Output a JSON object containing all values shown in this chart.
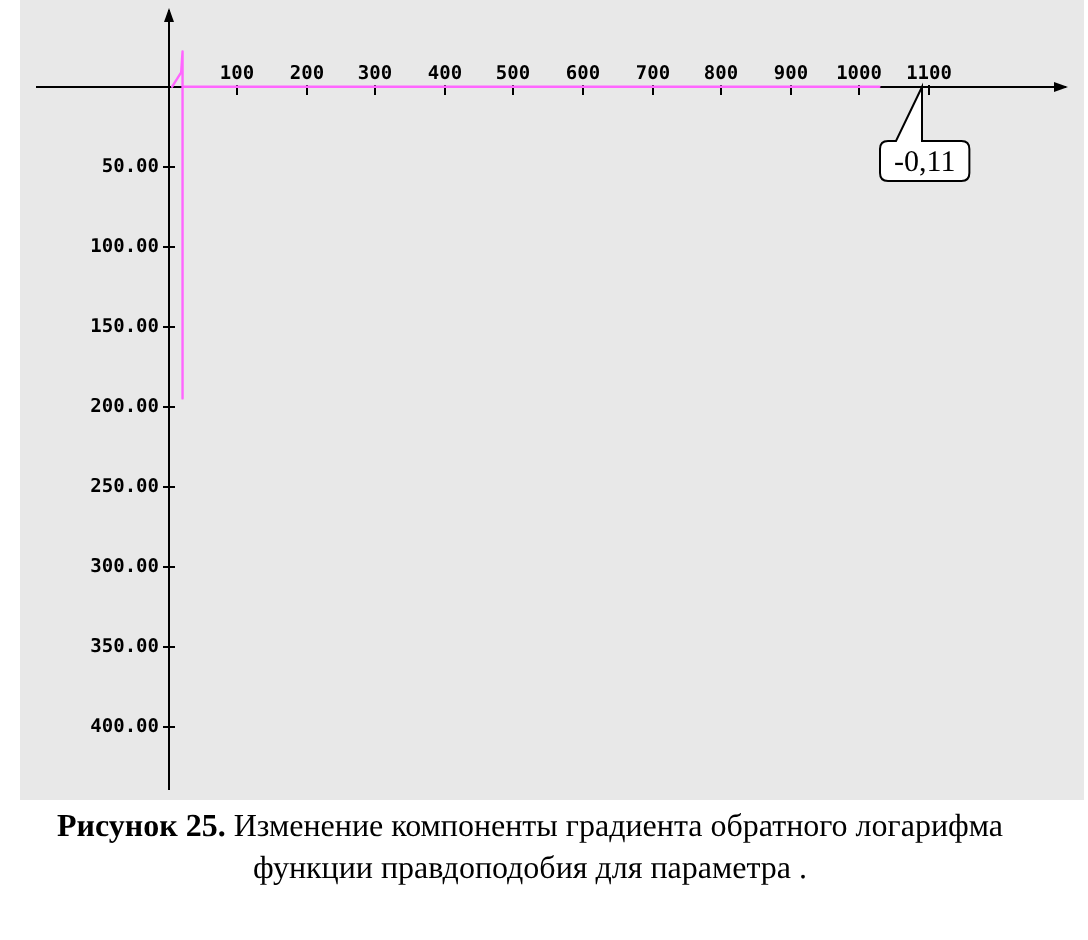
{
  "chart_data": {
    "type": "line",
    "title": "Рисунок 25.",
    "subtitle": "Изменение компоненты градиента обратного логарифма функции правдоподобия для параметра .",
    "x": [
      7,
      20,
      22,
      22,
      22,
      1030
    ],
    "series": [
      {
        "color": "#ff66ff",
        "values": [
          0,
          -9,
          -22,
          195,
          0,
          0
        ]
      }
    ],
    "xlim": [
      -190,
      1300
    ],
    "xticks": [
      100,
      200,
      300,
      400,
      500,
      600,
      700,
      800,
      900,
      1000,
      1100
    ],
    "ylim": [
      440,
      -48
    ],
    "yticks": [
      {
        "value": 50,
        "label": "50.00"
      },
      {
        "value": 100,
        "label": "100.00"
      },
      {
        "value": 150,
        "label": "150.00"
      },
      {
        "value": 200,
        "label": "200.00"
      },
      {
        "value": 250,
        "label": "250.00"
      },
      {
        "value": 300,
        "label": "300.00"
      },
      {
        "value": 350,
        "label": "350.00"
      },
      {
        "value": 400,
        "label": "400.00"
      }
    ],
    "annotations": [
      "-0,11"
    ],
    "grid": false,
    "legend": false,
    "marker": "none",
    "line_style": "solid"
  }
}
